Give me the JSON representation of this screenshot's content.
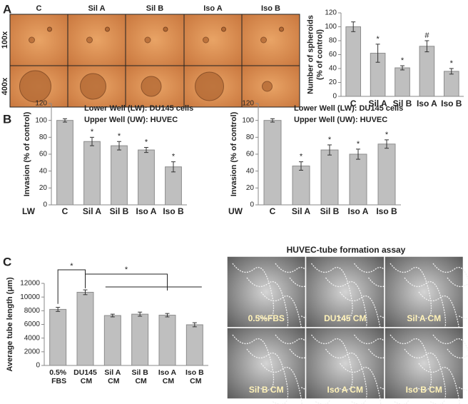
{
  "panel_labels": [
    "A",
    "B",
    "C"
  ],
  "micrographs_a": {
    "columns": [
      "C",
      "Sil A",
      "Sil B",
      "Iso A",
      "Iso B"
    ],
    "rows": [
      "100x",
      "400x"
    ]
  },
  "micrographs_c": {
    "title": "HUVEC-tube formation assay",
    "labels": [
      "0.5%FBS",
      "DU145 CM",
      "Sil A CM",
      "Sil B CM",
      "Iso A CM",
      "Iso B CM"
    ]
  },
  "chart_data": [
    {
      "type": "bar",
      "ylabel_lines": [
        "Number of spheroids",
        "(% of control)"
      ],
      "categories": [
        "C",
        "Sil A",
        "Sil B",
        "Iso A",
        "Iso B"
      ],
      "values": [
        100,
        62,
        41,
        72,
        36
      ],
      "errors": [
        7,
        13,
        3,
        8,
        4
      ],
      "annotations": [
        null,
        "*",
        "*",
        "#",
        "*"
      ],
      "color": "#bfbfbf",
      "ylim": [
        0,
        120
      ],
      "yticks": [
        0,
        20,
        40,
        60,
        80,
        100,
        120
      ]
    },
    {
      "type": "bar",
      "header": [
        "Lower Well (LW): DU145 cells",
        "Upper Well (UW): HUVEC"
      ],
      "ylabel_lines": [
        "Invasion (% of control)"
      ],
      "axis_prefix": "LW",
      "categories": [
        "C",
        "Sil A",
        "Sil B",
        "Iso A",
        "Iso B"
      ],
      "values": [
        100,
        75,
        70,
        65,
        45
      ],
      "errors": [
        2,
        5,
        5,
        3,
        6
      ],
      "annotations": [
        null,
        "*",
        "*",
        "*",
        "*"
      ],
      "color": "#bfbfbf",
      "ylim": [
        0,
        120
      ],
      "yticks": [
        0,
        20,
        40,
        60,
        80,
        100,
        120
      ]
    },
    {
      "type": "bar",
      "header": [
        "Lower Well (LW): DU145 cells",
        "Upper Well (UW): HUVEC"
      ],
      "ylabel_lines": [
        "Invasion (% of control)"
      ],
      "axis_prefix": "UW",
      "categories": [
        "C",
        "Sil A",
        "Sil B",
        "Iso A",
        "Iso B"
      ],
      "values": [
        100,
        46,
        65,
        60,
        72
      ],
      "errors": [
        2,
        5,
        6,
        6,
        5
      ],
      "annotations": [
        null,
        "*",
        "*",
        "*",
        "*"
      ],
      "color": "#bfbfbf",
      "ylim": [
        0,
        120
      ],
      "yticks": [
        0,
        20,
        40,
        60,
        80,
        100,
        120
      ]
    },
    {
      "type": "bar",
      "ylabel_lines": [
        "Average tube length (μm)"
      ],
      "categories": [
        "0.5% FBS",
        "DU145 CM",
        "Sil A CM",
        "Sil B CM",
        "Iso A CM",
        "Iso B CM"
      ],
      "values": [
        8200,
        10700,
        7300,
        7500,
        7350,
        5950
      ],
      "errors": [
        300,
        350,
        200,
        300,
        250,
        300
      ],
      "significance_labels": [
        "*",
        "*"
      ],
      "color": "#bfbfbf",
      "ylim": [
        0,
        12000
      ],
      "yticks": [
        0,
        2000,
        4000,
        6000,
        8000,
        10000,
        12000
      ]
    }
  ]
}
